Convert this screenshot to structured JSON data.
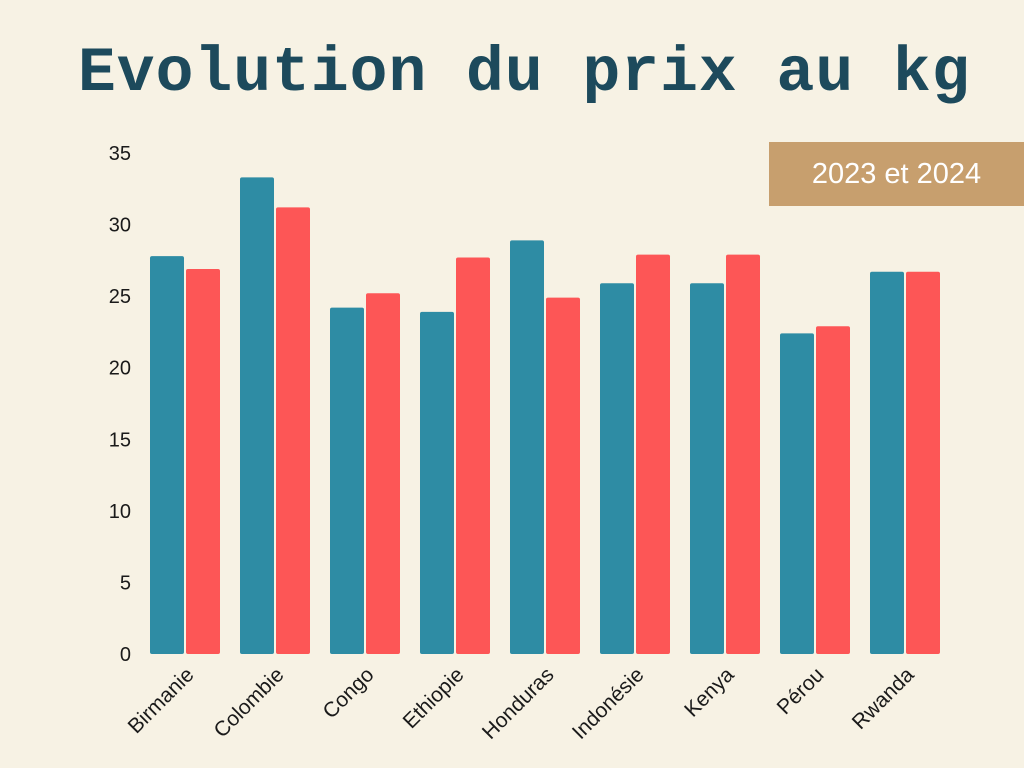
{
  "title": "Evolution du prix au kg",
  "badge": "2023 et 2024",
  "colors": {
    "background": "#f7f2e4",
    "title": "#1d4a5c",
    "badge": "#c79f6e",
    "series_2023": "#2e8ca4",
    "series_2024": "#fd5656"
  },
  "chart_data": {
    "type": "bar",
    "title": "Evolution du prix au kg",
    "categories": [
      "Birmanie",
      "Colombie",
      "Congo",
      "Ethiopie",
      "Honduras",
      "Indonésie",
      "Kenya",
      "Pérou",
      "Rwanda"
    ],
    "series": [
      {
        "values": [
          27.8,
          33.3,
          24.2,
          23.9,
          28.9,
          25.9,
          25.9,
          22.4,
          26.7
        ]
      },
      {
        "values": [
          26.9,
          31.2,
          25.2,
          27.7,
          24.9,
          27.9,
          27.9,
          22.9,
          26.7
        ]
      }
    ],
    "yticks": [
      "0",
      "5",
      "10",
      "15",
      "20",
      "25",
      "30",
      "35"
    ],
    "ylim": [
      0,
      35
    ],
    "xlabel": "",
    "ylabel": "",
    "grid": false
  }
}
